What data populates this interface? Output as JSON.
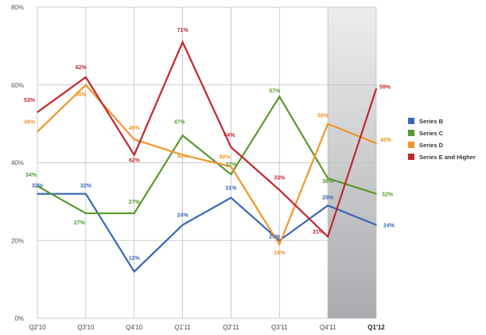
{
  "chart_data": {
    "type": "line",
    "categories": [
      "Q2'10",
      "Q3'10",
      "Q4'10",
      "Q1'11",
      "Q2'11",
      "Q3'11",
      "Q4'11",
      "Q1'12"
    ],
    "highlight_category": "Q1'12",
    "y_ticks": [
      "0%",
      "20%",
      "40%",
      "60%",
      "80%"
    ],
    "ylim": [
      0,
      80
    ],
    "grid": true,
    "legend_position": "right",
    "series": [
      {
        "name": "Series B",
        "color": "#3a68b4",
        "values": [
          32,
          32,
          12,
          24,
          31,
          20,
          29,
          24
        ],
        "labels": [
          "32%",
          "32%",
          "12%",
          "24%",
          "31%",
          "20%",
          "29%",
          "24%"
        ]
      },
      {
        "name": "Series C",
        "color": "#5a9a2e",
        "values": [
          34,
          27,
          27,
          47,
          37,
          57,
          36,
          32
        ],
        "labels": [
          "34%",
          "27%",
          "27%",
          "47%",
          "37%",
          "57%",
          "36%",
          "32%"
        ]
      },
      {
        "name": "Series D",
        "color": "#f0962a",
        "values": [
          48,
          60,
          46,
          42,
          39,
          19,
          50,
          45
        ],
        "labels": [
          "48%",
          "60%",
          "46%",
          "42%",
          "39%",
          "19%",
          "50%",
          "45%"
        ]
      },
      {
        "name": "Series E and Higher",
        "color": "#c0282d",
        "values": [
          53,
          62,
          42,
          71,
          44,
          33,
          21,
          59
        ],
        "labels": [
          "53%",
          "62%",
          "42%",
          "71%",
          "44%",
          "33%",
          "21%",
          "59%"
        ]
      }
    ]
  }
}
